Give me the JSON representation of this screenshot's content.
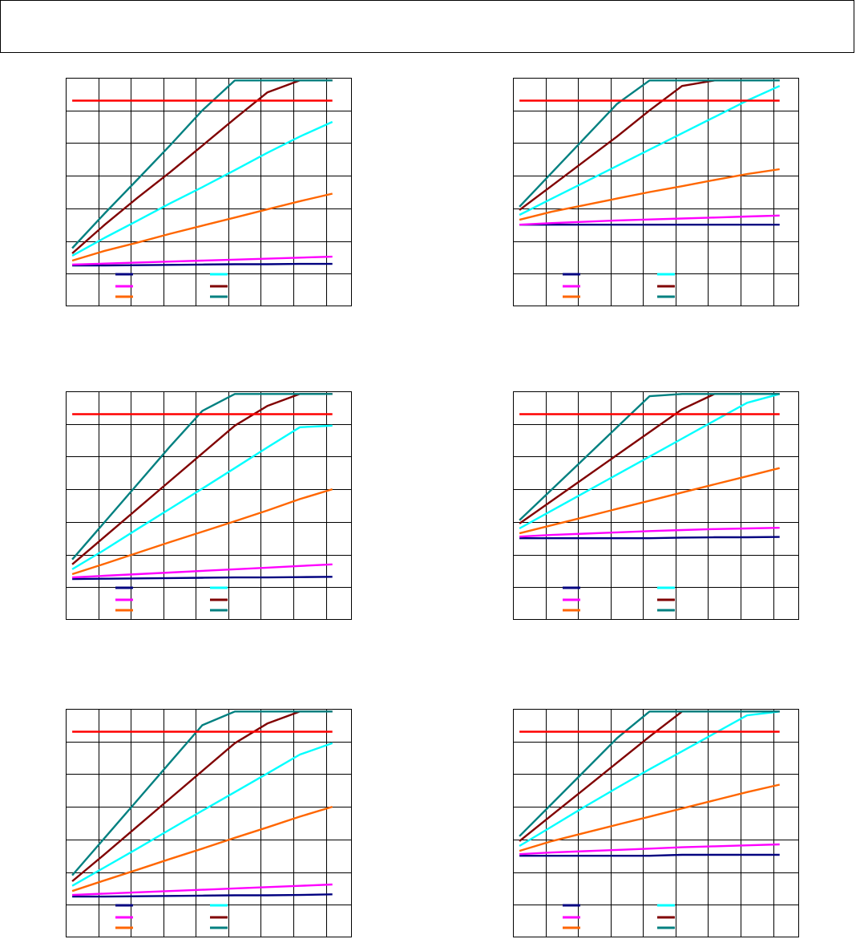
{
  "header": {
    "title": ""
  },
  "chart_data": [
    {
      "type": "line",
      "grid": true,
      "legend_placement": "bottom",
      "x": [
        0,
        1,
        2,
        3,
        4,
        5,
        6,
        7,
        8
      ],
      "ylim": [
        0,
        7
      ],
      "xlim": [
        0,
        8.8
      ],
      "series": [
        {
          "color": "#000080",
          "values": [
            1.25,
            1.25,
            1.26,
            1.27,
            1.28,
            1.29,
            1.29,
            1.3,
            1.3
          ]
        },
        {
          "color": "#FF00FF",
          "values": [
            1.28,
            1.31,
            1.34,
            1.37,
            1.4,
            1.43,
            1.46,
            1.49,
            1.52
          ]
        },
        {
          "color": "#FF6600",
          "values": [
            1.4,
            1.7,
            1.95,
            2.22,
            2.47,
            2.72,
            2.97,
            3.22,
            3.45
          ]
        },
        {
          "color": "#00FFFF",
          "values": [
            1.55,
            2.1,
            2.62,
            3.15,
            3.65,
            4.17,
            4.7,
            5.2,
            5.65
          ]
        },
        {
          "color": "#800000",
          "values": [
            1.62,
            2.5,
            3.32,
            4.1,
            4.92,
            5.75,
            6.55,
            7.0,
            7.0
          ]
        },
        {
          "color": "#008080",
          "values": [
            1.78,
            2.85,
            3.88,
            4.92,
            6.0,
            7.0,
            7.0,
            7.0,
            7.0
          ]
        },
        {
          "color": "#FF0000",
          "values": [
            6.3,
            6.3,
            6.3,
            6.3,
            6.3,
            6.3,
            6.3,
            6.3,
            6.3
          ]
        }
      ]
    },
    {
      "type": "line",
      "grid": true,
      "legend_placement": "bottom",
      "x": [
        0,
        1,
        2,
        3,
        4,
        5,
        6,
        7,
        8
      ],
      "ylim": [
        0,
        7
      ],
      "xlim": [
        0,
        8.8
      ],
      "series": [
        {
          "color": "#000080",
          "values": [
            2.5,
            2.5,
            2.5,
            2.5,
            2.5,
            2.5,
            2.5,
            2.5,
            2.5
          ]
        },
        {
          "color": "#FF00FF",
          "values": [
            2.5,
            2.55,
            2.59,
            2.63,
            2.66,
            2.69,
            2.72,
            2.75,
            2.78
          ]
        },
        {
          "color": "#FF6600",
          "values": [
            2.65,
            2.9,
            3.1,
            3.3,
            3.5,
            3.68,
            3.87,
            4.05,
            4.2
          ]
        },
        {
          "color": "#00FFFF",
          "values": [
            2.8,
            3.3,
            3.8,
            4.3,
            4.8,
            5.3,
            5.8,
            6.3,
            6.75
          ]
        },
        {
          "color": "#800000",
          "values": [
            2.95,
            3.7,
            4.45,
            5.2,
            6.0,
            6.75,
            7.0,
            7.0,
            7.0
          ]
        },
        {
          "color": "#008080",
          "values": [
            3.05,
            4.1,
            5.15,
            6.2,
            7.0,
            7.0,
            7.0,
            7.0,
            7.0
          ]
        },
        {
          "color": "#FF0000",
          "values": [
            6.3,
            6.3,
            6.3,
            6.3,
            6.3,
            6.3,
            6.3,
            6.3,
            6.3
          ]
        }
      ]
    },
    {
      "type": "line",
      "grid": true,
      "legend_placement": "bottom",
      "x": [
        0,
        1,
        2,
        3,
        4,
        5,
        6,
        7,
        8
      ],
      "ylim": [
        0,
        7
      ],
      "xlim": [
        0,
        8.8
      ],
      "series": [
        {
          "color": "#000080",
          "values": [
            1.25,
            1.26,
            1.27,
            1.28,
            1.29,
            1.3,
            1.3,
            1.31,
            1.32
          ]
        },
        {
          "color": "#FF00FF",
          "values": [
            1.3,
            1.35,
            1.4,
            1.45,
            1.5,
            1.55,
            1.6,
            1.65,
            1.7
          ]
        },
        {
          "color": "#FF6600",
          "values": [
            1.4,
            1.72,
            2.05,
            2.38,
            2.7,
            3.02,
            3.35,
            3.7,
            4.0
          ]
        },
        {
          "color": "#00FFFF",
          "values": [
            1.55,
            2.15,
            2.78,
            3.4,
            4.02,
            4.65,
            5.28,
            5.9,
            5.95
          ]
        },
        {
          "color": "#800000",
          "values": [
            1.7,
            2.55,
            3.4,
            4.25,
            5.1,
            5.95,
            6.55,
            7.0,
            7.0
          ]
        },
        {
          "color": "#008080",
          "values": [
            1.85,
            3.0,
            4.15,
            5.3,
            6.4,
            7.0,
            7.0,
            7.0,
            7.0
          ]
        },
        {
          "color": "#FF0000",
          "values": [
            6.3,
            6.3,
            6.3,
            6.3,
            6.3,
            6.3,
            6.3,
            6.3,
            6.3
          ]
        }
      ]
    },
    {
      "type": "line",
      "grid": true,
      "legend_placement": "bottom",
      "x": [
        0,
        1,
        2,
        3,
        4,
        5,
        6,
        7,
        8
      ],
      "ylim": [
        0,
        7
      ],
      "xlim": [
        0,
        8.8
      ],
      "series": [
        {
          "color": "#000080",
          "values": [
            2.5,
            2.5,
            2.5,
            2.5,
            2.5,
            2.52,
            2.53,
            2.53,
            2.54
          ]
        },
        {
          "color": "#FF00FF",
          "values": [
            2.55,
            2.6,
            2.64,
            2.68,
            2.72,
            2.75,
            2.78,
            2.8,
            2.82
          ]
        },
        {
          "color": "#FF6600",
          "values": [
            2.65,
            2.9,
            3.15,
            3.4,
            3.65,
            3.9,
            4.15,
            4.4,
            4.65
          ]
        },
        {
          "color": "#00FFFF",
          "values": [
            2.8,
            3.35,
            3.9,
            4.45,
            5.0,
            5.55,
            6.1,
            6.65,
            7.0
          ]
        },
        {
          "color": "#800000",
          "values": [
            2.95,
            3.65,
            4.35,
            5.05,
            5.75,
            6.45,
            7.0,
            7.0,
            7.0
          ]
        },
        {
          "color": "#008080",
          "values": [
            3.05,
            4.0,
            4.95,
            5.9,
            6.85,
            7.0,
            7.0,
            7.0,
            7.0
          ]
        },
        {
          "color": "#FF0000",
          "values": [
            6.3,
            6.3,
            6.3,
            6.3,
            6.3,
            6.3,
            6.3,
            6.3,
            6.3
          ]
        }
      ]
    },
    {
      "type": "line",
      "grid": true,
      "legend_placement": "bottom",
      "x": [
        0,
        1,
        2,
        3,
        4,
        5,
        6,
        7,
        8
      ],
      "ylim": [
        0,
        7
      ],
      "xlim": [
        0,
        8.8
      ],
      "series": [
        {
          "color": "#000080",
          "values": [
            1.25,
            1.25,
            1.26,
            1.27,
            1.28,
            1.29,
            1.29,
            1.3,
            1.32
          ]
        },
        {
          "color": "#FF00FF",
          "values": [
            1.3,
            1.34,
            1.38,
            1.42,
            1.46,
            1.5,
            1.54,
            1.58,
            1.62
          ]
        },
        {
          "color": "#FF6600",
          "values": [
            1.42,
            1.75,
            2.07,
            2.4,
            2.72,
            3.05,
            3.37,
            3.7,
            4.0
          ]
        },
        {
          "color": "#00FFFF",
          "values": [
            1.58,
            2.15,
            2.72,
            3.3,
            3.88,
            4.45,
            5.02,
            5.6,
            5.95
          ]
        },
        {
          "color": "#800000",
          "values": [
            1.72,
            2.55,
            3.4,
            4.25,
            5.1,
            5.95,
            6.55,
            6.95,
            6.95
          ]
        },
        {
          "color": "#008080",
          "values": [
            1.9,
            3.05,
            4.2,
            5.35,
            6.5,
            7.0,
            7.0,
            7.0,
            7.0
          ]
        },
        {
          "color": "#FF0000",
          "values": [
            6.3,
            6.3,
            6.3,
            6.3,
            6.3,
            6.3,
            6.3,
            6.3,
            6.3
          ]
        }
      ]
    },
    {
      "type": "line",
      "grid": true,
      "legend_placement": "bottom",
      "x": [
        0,
        1,
        2,
        3,
        4,
        5,
        6,
        7,
        8
      ],
      "ylim": [
        0,
        7
      ],
      "xlim": [
        0,
        8.8
      ],
      "series": [
        {
          "color": "#000080",
          "values": [
            2.5,
            2.5,
            2.5,
            2.5,
            2.5,
            2.53,
            2.53,
            2.53,
            2.53
          ]
        },
        {
          "color": "#FF00FF",
          "values": [
            2.55,
            2.6,
            2.64,
            2.68,
            2.72,
            2.76,
            2.79,
            2.82,
            2.85
          ]
        },
        {
          "color": "#FF6600",
          "values": [
            2.65,
            2.95,
            3.2,
            3.45,
            3.7,
            3.95,
            4.2,
            4.45,
            4.68
          ]
        },
        {
          "color": "#00FFFF",
          "values": [
            2.8,
            3.4,
            4.0,
            4.58,
            5.15,
            5.7,
            6.25,
            6.8,
            7.0
          ]
        },
        {
          "color": "#800000",
          "values": [
            2.95,
            3.75,
            4.55,
            5.35,
            6.15,
            6.95,
            7.0,
            7.0,
            7.0
          ]
        },
        {
          "color": "#008080",
          "values": [
            3.1,
            4.1,
            5.1,
            6.1,
            7.0,
            7.0,
            7.0,
            7.0,
            7.0
          ]
        },
        {
          "color": "#FF0000",
          "values": [
            6.3,
            6.3,
            6.3,
            6.3,
            6.3,
            6.3,
            6.3,
            6.3,
            6.3
          ]
        }
      ]
    }
  ]
}
